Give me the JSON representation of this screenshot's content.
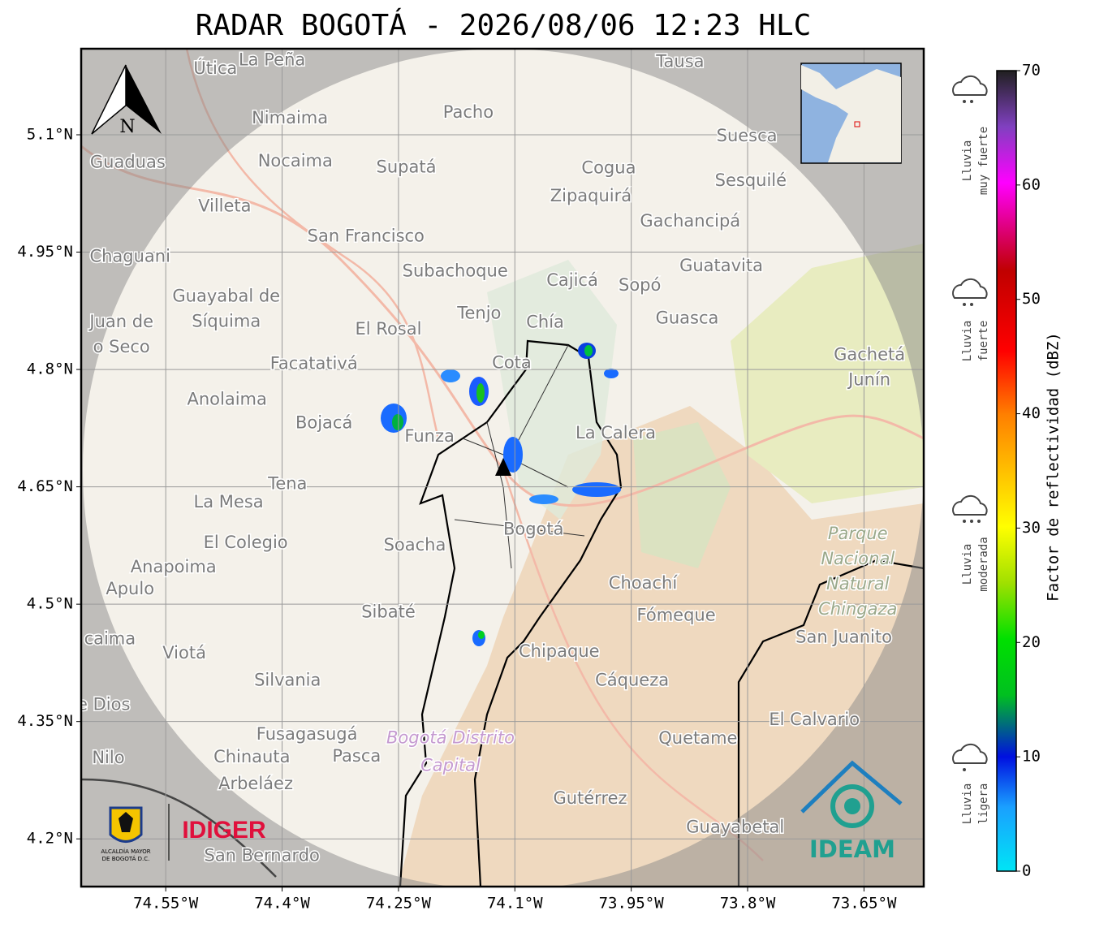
{
  "map": {
    "title": "RADAR BOGOTÁ - 2026/08/06 12:23 HLC",
    "xlim": [
      -74.659,
      -73.573
    ],
    "ylim": [
      4.139,
      5.21
    ],
    "xticks": [
      {
        "value": -74.55,
        "label": "74.55°W"
      },
      {
        "value": -74.4,
        "label": "74.4°W"
      },
      {
        "value": -74.25,
        "label": "74.25°W"
      },
      {
        "value": -74.1,
        "label": "74.1°W"
      },
      {
        "value": -73.95,
        "label": "73.95°W"
      },
      {
        "value": -73.8,
        "label": "73.8°W"
      },
      {
        "value": -73.65,
        "label": "73.65°W"
      }
    ],
    "yticks": [
      {
        "value": 5.1,
        "label": "5.1°N"
      },
      {
        "value": 4.95,
        "label": "4.95°N"
      },
      {
        "value": 4.8,
        "label": "4.8°N"
      },
      {
        "value": 4.65,
        "label": "4.65°N"
      },
      {
        "value": 4.5,
        "label": "4.5°N"
      },
      {
        "value": 4.35,
        "label": "4.35°N"
      },
      {
        "value": 4.2,
        "label": "4.2°N"
      }
    ],
    "grid": true,
    "north_label": "N",
    "colorbar": {
      "label": "Factor de reflectividad (dBZ)",
      "lim": [
        0,
        70
      ],
      "ticks": [
        0,
        10,
        20,
        30,
        40,
        50,
        60,
        70
      ]
    },
    "rain_legend": [
      {
        "lines": [
          "Lluvia",
          "muy fuerte"
        ]
      },
      {
        "lines": [
          "Lluvia",
          "fuerte"
        ]
      },
      {
        "lines": [
          "Lluvia",
          "moderada"
        ]
      },
      {
        "lines": [
          "Lluvia",
          "ligera"
        ]
      }
    ],
    "logos": {
      "alcaldia": [
        "ALCALDÍA MAYOR",
        "DE BOGOTÁ D.C."
      ],
      "idiger": "IDIGER",
      "ideam": "IDEAM"
    },
    "places": [
      {
        "lines": [
          "Útica"
        ],
        "lon": -74.486,
        "lat": 5.184
      },
      {
        "lines": [
          "La Peña"
        ],
        "lon": -74.413,
        "lat": 5.195
      },
      {
        "lines": [
          "Tausa"
        ],
        "lon": -73.887,
        "lat": 5.193
      },
      {
        "lines": [
          "Pacho"
        ],
        "lon": -74.16,
        "lat": 5.128
      },
      {
        "lines": [
          "Nimaima"
        ],
        "lon": -74.39,
        "lat": 5.121
      },
      {
        "lines": [
          "Guaduas"
        ],
        "lon": -74.599,
        "lat": 5.064
      },
      {
        "lines": [
          "Nocaima"
        ],
        "lon": -74.383,
        "lat": 5.066
      },
      {
        "lines": [
          "Supatá"
        ],
        "lon": -74.24,
        "lat": 5.058
      },
      {
        "lines": [
          "Cogua"
        ],
        "lon": -73.979,
        "lat": 5.057
      },
      {
        "lines": [
          "Suesca"
        ],
        "lon": -73.801,
        "lat": 5.098
      },
      {
        "lines": [
          "Zipaquirá"
        ],
        "lon": -74.002,
        "lat": 5.021
      },
      {
        "lines": [
          "Sesquilé"
        ],
        "lon": -73.796,
        "lat": 5.041
      },
      {
        "lines": [
          "Villeta"
        ],
        "lon": -74.474,
        "lat": 5.008
      },
      {
        "lines": [
          "Gachancipá"
        ],
        "lon": -73.874,
        "lat": 4.989
      },
      {
        "lines": [
          "San Francisco"
        ],
        "lon": -74.292,
        "lat": 4.97
      },
      {
        "lines": [
          "Chaguani"
        ],
        "lon": -74.596,
        "lat": 4.944
      },
      {
        "lines": [
          "Guatavita"
        ],
        "lon": -73.834,
        "lat": 4.932
      },
      {
        "lines": [
          "Subachoque"
        ],
        "lon": -74.177,
        "lat": 4.925
      },
      {
        "lines": [
          "Cajicá"
        ],
        "lon": -74.026,
        "lat": 4.913
      },
      {
        "lines": [
          "Sopó"
        ],
        "lon": -73.939,
        "lat": 4.907
      },
      {
        "lines": [
          "Guayabal de",
          "Síquima"
        ],
        "lon": -74.472,
        "lat": 4.877
      },
      {
        "lines": [
          "Tenjo"
        ],
        "lon": -74.146,
        "lat": 4.871
      },
      {
        "lines": [
          "Chía"
        ],
        "lon": -74.061,
        "lat": 4.86
      },
      {
        "lines": [
          "Guasca"
        ],
        "lon": -73.878,
        "lat": 4.865
      },
      {
        "lines": [
          "Juan de",
          "o Seco"
        ],
        "lon": -74.607,
        "lat": 4.844
      },
      {
        "lines": [
          "El Rosal"
        ],
        "lon": -74.263,
        "lat": 4.851
      },
      {
        "lines": [
          "Cota"
        ],
        "lon": -74.104,
        "lat": 4.808
      },
      {
        "lines": [
          "Facatativá"
        ],
        "lon": -74.359,
        "lat": 4.807
      },
      {
        "lines": [
          "Gachetá",
          "Junín"
        ],
        "lon": -73.643,
        "lat": 4.802
      },
      {
        "lines": [
          "Anolaima"
        ],
        "lon": -74.471,
        "lat": 4.761
      },
      {
        "lines": [
          "Bojacá"
        ],
        "lon": -74.346,
        "lat": 4.731
      },
      {
        "lines": [
          "Funza"
        ],
        "lon": -74.21,
        "lat": 4.714
      },
      {
        "lines": [
          "La Calera"
        ],
        "lon": -73.97,
        "lat": 4.718
      },
      {
        "lines": [
          "Tena"
        ],
        "lon": -74.393,
        "lat": 4.653
      },
      {
        "lines": [
          "La Mesa"
        ],
        "lon": -74.469,
        "lat": 4.63
      },
      {
        "lines": [
          "Bogotá"
        ],
        "lon": -74.076,
        "lat": 4.595
      },
      {
        "lines": [
          "El Colegio"
        ],
        "lon": -74.447,
        "lat": 4.578
      },
      {
        "lines": [
          "Soacha"
        ],
        "lon": -74.229,
        "lat": 4.575
      },
      {
        "lines": [
          "Parque",
          "Nacional",
          "Natural",
          "Chingaza"
        ],
        "lon": -73.658,
        "lat": 4.541,
        "style": "park"
      },
      {
        "lines": [
          "Anapoima"
        ],
        "lon": -74.54,
        "lat": 4.547
      },
      {
        "lines": [
          "Apulo"
        ],
        "lon": -74.596,
        "lat": 4.519
      },
      {
        "lines": [
          "Choachí"
        ],
        "lon": -73.935,
        "lat": 4.526
      },
      {
        "lines": [
          "Fómeque"
        ],
        "lon": -73.892,
        "lat": 4.485
      },
      {
        "lines": [
          "Sibaté"
        ],
        "lon": -74.263,
        "lat": 4.489
      },
      {
        "lines": [
          "caima"
        ],
        "lon": -74.622,
        "lat": 4.455
      },
      {
        "lines": [
          "San Juanito"
        ],
        "lon": -73.676,
        "lat": 4.457
      },
      {
        "lines": [
          "Viotá"
        ],
        "lon": -74.526,
        "lat": 4.437
      },
      {
        "lines": [
          "Chipaque"
        ],
        "lon": -74.043,
        "lat": 4.439
      },
      {
        "lines": [
          "Silvania"
        ],
        "lon": -74.393,
        "lat": 4.402
      },
      {
        "lines": [
          "Cáqueza"
        ],
        "lon": -73.949,
        "lat": 4.402
      },
      {
        "lines": [
          "e Dios"
        ],
        "lon": -74.63,
        "lat": 4.371
      },
      {
        "lines": [
          "El Calvario"
        ],
        "lon": -73.714,
        "lat": 4.352
      },
      {
        "lines": [
          "Fusagasugá"
        ],
        "lon": -74.368,
        "lat": 4.333
      },
      {
        "lines": [
          "Bogotá Distrito",
          "Capital"
        ],
        "lon": -74.183,
        "lat": 4.311,
        "style": "district"
      },
      {
        "lines": [
          "Quetame"
        ],
        "lon": -73.864,
        "lat": 4.328
      },
      {
        "lines": [
          "Nilo"
        ],
        "lon": -74.624,
        "lat": 4.303
      },
      {
        "lines": [
          "Chinauta"
        ],
        "lon": -74.439,
        "lat": 4.304
      },
      {
        "lines": [
          "Pasca"
        ],
        "lon": -74.304,
        "lat": 4.305
      },
      {
        "lines": [
          "Arbeláez"
        ],
        "lon": -74.434,
        "lat": 4.27
      },
      {
        "lines": [
          "Gutérrez"
        ],
        "lon": -74.003,
        "lat": 4.251
      },
      {
        "lines": [
          "Guayabetal"
        ],
        "lon": -73.816,
        "lat": 4.214
      },
      {
        "lines": [
          "San Bernardo"
        ],
        "lon": -74.426,
        "lat": 4.178
      }
    ]
  }
}
